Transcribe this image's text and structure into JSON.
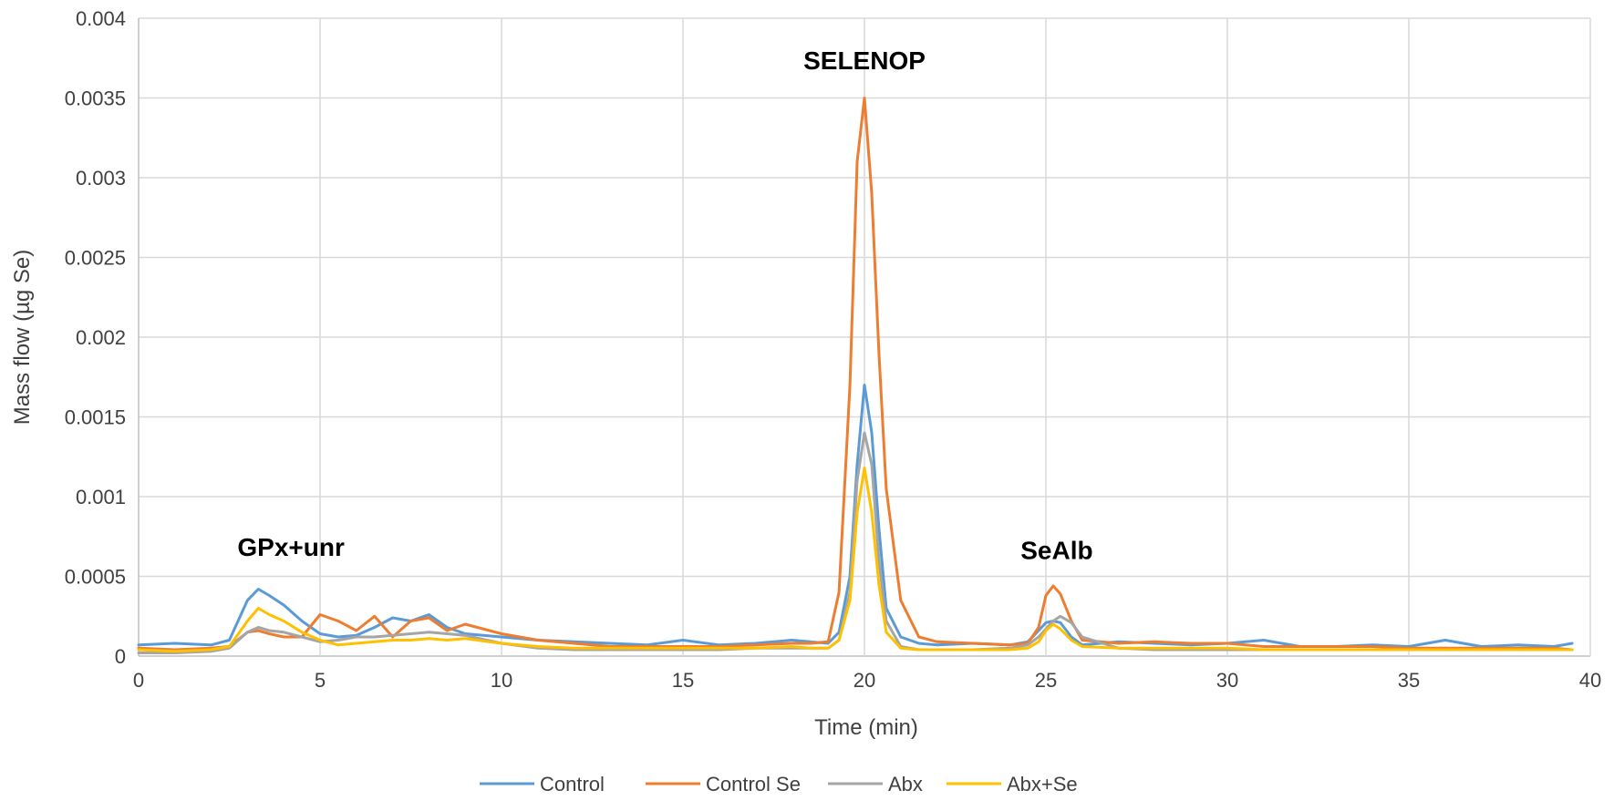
{
  "chart_data": {
    "type": "line",
    "title": "",
    "xlabel": "Time (min)",
    "ylabel": "Mass  flow (µg Se)",
    "xlim": [
      0,
      40
    ],
    "ylim": [
      0,
      0.004
    ],
    "xticks": [
      0,
      5,
      10,
      15,
      20,
      25,
      30,
      35,
      40
    ],
    "xtick_labels": [
      "0",
      "5",
      "10",
      "15",
      "20",
      "25",
      "30",
      "35",
      "40"
    ],
    "yticks": [
      0,
      0.0005,
      0.001,
      0.0015,
      0.002,
      0.0025,
      0.003,
      0.0035,
      0.004
    ],
    "ytick_labels": [
      "0",
      "0.0005",
      "0.001",
      "0.0015",
      "0.002",
      "0.0025",
      "0.003",
      "0.0035",
      "0.004"
    ],
    "grid": true,
    "legend_position": "bottom",
    "annotations": [
      {
        "text": "GPx+unr",
        "x": 4.2,
        "y": 0.00063
      },
      {
        "text": "SELENOP",
        "x": 20.0,
        "y": 0.00368
      },
      {
        "text": "SeAlb",
        "x": 25.3,
        "y": 0.00061
      }
    ],
    "x": [
      0,
      1,
      2,
      2.5,
      3,
      3.3,
      3.6,
      4,
      4.5,
      5,
      5.5,
      6,
      6.5,
      7,
      7.5,
      8,
      8.5,
      9,
      10,
      11,
      12,
      13,
      14,
      15,
      16,
      17,
      18,
      18.5,
      19,
      19.3,
      19.6,
      19.8,
      20,
      20.2,
      20.4,
      20.6,
      21,
      21.5,
      22,
      23,
      24,
      24.5,
      24.8,
      25,
      25.2,
      25.4,
      25.7,
      26,
      27,
      28,
      29,
      30,
      31,
      32,
      33,
      34,
      35,
      36,
      37,
      38,
      39,
      39.5
    ],
    "series": [
      {
        "name": "Control",
        "color": "#5b9bd5",
        "values": [
          7e-05,
          8e-05,
          7e-05,
          0.0001,
          0.00035,
          0.00042,
          0.00038,
          0.00032,
          0.00022,
          0.00014,
          0.00012,
          0.00013,
          0.00018,
          0.00024,
          0.00022,
          0.00026,
          0.00018,
          0.00014,
          0.00012,
          0.0001,
          9e-05,
          8e-05,
          7e-05,
          0.0001,
          7e-05,
          8e-05,
          0.0001,
          9e-05,
          8e-05,
          0.00015,
          0.0005,
          0.0012,
          0.0017,
          0.0014,
          0.0008,
          0.0003,
          0.00012,
          8e-05,
          7e-05,
          8e-05,
          7e-05,
          9e-05,
          0.00016,
          0.00021,
          0.00022,
          0.00021,
          0.00012,
          7e-05,
          9e-05,
          8e-05,
          7e-05,
          8e-05,
          0.0001,
          6e-05,
          6e-05,
          7e-05,
          6e-05,
          0.0001,
          6e-05,
          7e-05,
          6e-05,
          8e-05
        ]
      },
      {
        "name": "Control Se",
        "color": "#ed7d31",
        "values": [
          5e-05,
          4e-05,
          5e-05,
          6e-05,
          0.00015,
          0.00016,
          0.00014,
          0.00012,
          0.00012,
          0.00026,
          0.00022,
          0.00016,
          0.00025,
          0.00012,
          0.00022,
          0.00024,
          0.00016,
          0.0002,
          0.00014,
          0.0001,
          8e-05,
          6e-05,
          6e-05,
          6e-05,
          6e-05,
          7e-05,
          8e-05,
          8e-05,
          9e-05,
          0.0004,
          0.0017,
          0.0031,
          0.0035,
          0.0029,
          0.0019,
          0.00105,
          0.00035,
          0.00012,
          9e-05,
          8e-05,
          7e-05,
          8e-05,
          0.00018,
          0.00038,
          0.00044,
          0.00039,
          0.00022,
          0.0001,
          8e-05,
          9e-05,
          8e-05,
          8e-05,
          6e-05,
          6e-05,
          6e-05,
          6e-05,
          5e-05,
          5e-05,
          5e-05,
          5e-05,
          5e-05,
          4e-05
        ]
      },
      {
        "name": "Abx",
        "color": "#a5a5a5",
        "values": [
          2e-05,
          2e-05,
          3e-05,
          5e-05,
          0.00015,
          0.00018,
          0.00016,
          0.00015,
          0.00012,
          9e-05,
          0.0001,
          0.00012,
          0.00012,
          0.00013,
          0.00014,
          0.00015,
          0.00014,
          0.00013,
          8e-05,
          5e-05,
          4e-05,
          4e-05,
          4e-05,
          4e-05,
          4e-05,
          5e-05,
          5e-05,
          5e-05,
          5e-05,
          0.0001,
          0.0004,
          0.0011,
          0.0014,
          0.0012,
          0.0006,
          0.00022,
          6e-05,
          4e-05,
          4e-05,
          4e-05,
          5e-05,
          7e-05,
          0.00012,
          0.00017,
          0.00022,
          0.00025,
          0.00021,
          0.00012,
          5e-05,
          4e-05,
          4e-05,
          4e-05,
          4e-05,
          4e-05,
          4e-05,
          4e-05,
          4e-05,
          4e-05,
          4e-05,
          4e-05,
          4e-05,
          4e-05
        ]
      },
      {
        "name": "Abx+Se",
        "color": "#ffc000",
        "values": [
          4e-05,
          3e-05,
          4e-05,
          6e-05,
          0.00022,
          0.0003,
          0.00026,
          0.00022,
          0.00015,
          0.0001,
          7e-05,
          8e-05,
          9e-05,
          0.0001,
          0.0001,
          0.00011,
          0.0001,
          0.00011,
          8e-05,
          6e-05,
          5e-05,
          5e-05,
          5e-05,
          5e-05,
          5e-05,
          5e-05,
          6e-05,
          5e-05,
          5e-05,
          0.0001,
          0.00035,
          0.0009,
          0.00118,
          0.0009,
          0.00045,
          0.00015,
          5e-05,
          4e-05,
          4e-05,
          4e-05,
          4e-05,
          5e-05,
          9e-05,
          0.00016,
          0.0002,
          0.00017,
          0.0001,
          6e-05,
          5e-05,
          5e-05,
          5e-05,
          5e-05,
          4e-05,
          4e-05,
          4e-05,
          4e-05,
          4e-05,
          4e-05,
          4e-05,
          4e-05,
          4e-05,
          4e-05
        ]
      }
    ]
  }
}
